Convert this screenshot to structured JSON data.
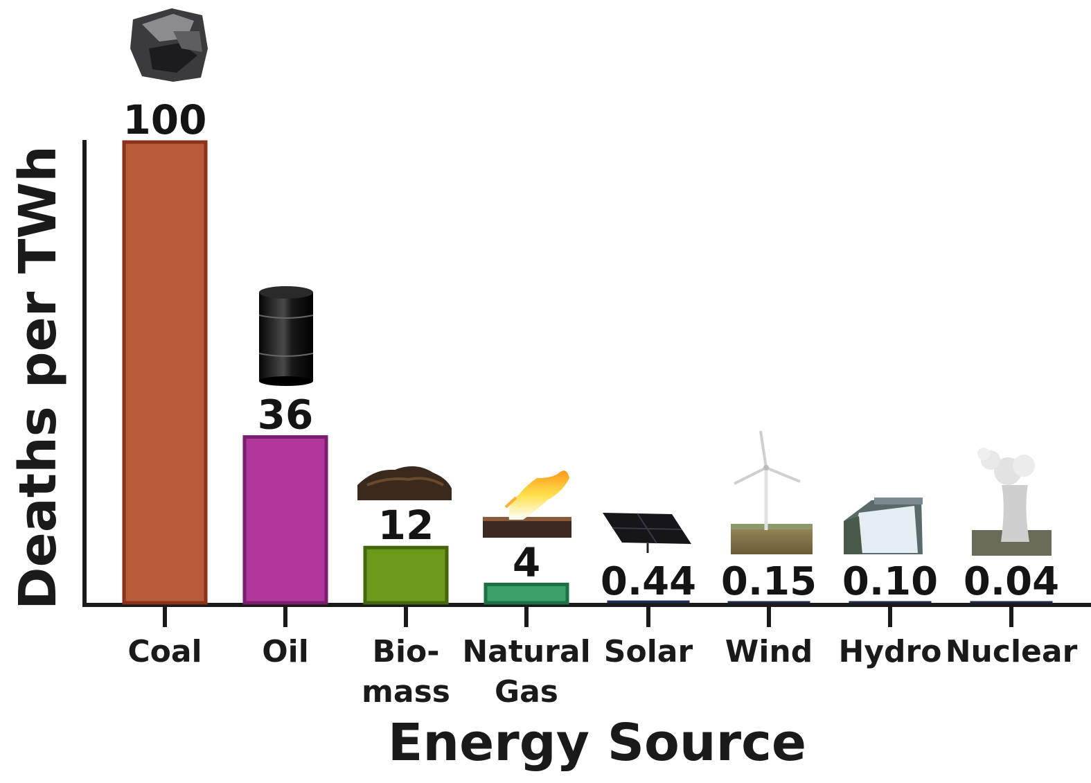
{
  "chart_data": {
    "type": "bar",
    "title": "",
    "xlabel": "Energy Source",
    "ylabel": "Deaths per TWh",
    "categories": [
      "Coal",
      "Oil",
      "Bio-mass",
      "Natural Gas",
      "Solar",
      "Wind",
      "Hydro",
      "Nuclear"
    ],
    "category_lines": [
      [
        "Coal"
      ],
      [
        "Oil"
      ],
      [
        "Bio-",
        "mass"
      ],
      [
        "Natural",
        "Gas"
      ],
      [
        "Solar"
      ],
      [
        "Wind"
      ],
      [
        "Hydro"
      ],
      [
        "Nuclear"
      ]
    ],
    "values": [
      100,
      36,
      12,
      4,
      0.44,
      0.15,
      0.1,
      0.04
    ],
    "value_labels": [
      "100",
      "36",
      "12",
      "4",
      "0.44",
      "0.15",
      "0.10",
      "0.04"
    ],
    "icons": [
      "coal-lump-icon",
      "oil-barrel-icon",
      "biomass-pile-icon",
      "gas-flare-icon",
      "solar-panel-icon",
      "wind-turbine-icon",
      "hydro-dam-icon",
      "cooling-tower-icon"
    ],
    "colors": [
      "#b85a3c",
      "#b0379b",
      "#6e9a1c",
      "#3aa16d",
      "#1f2a55",
      "#1f2a55",
      "#1f2a55",
      "#1f2a55"
    ],
    "border_colors": [
      "#8a3318",
      "#7a1f6b",
      "#45650f",
      "#1f6e45",
      "#1f2a55",
      "#1f2a55",
      "#1f2a55",
      "#1f2a55"
    ],
    "ylim": [
      0,
      100
    ],
    "grid": false,
    "legend": "none"
  }
}
